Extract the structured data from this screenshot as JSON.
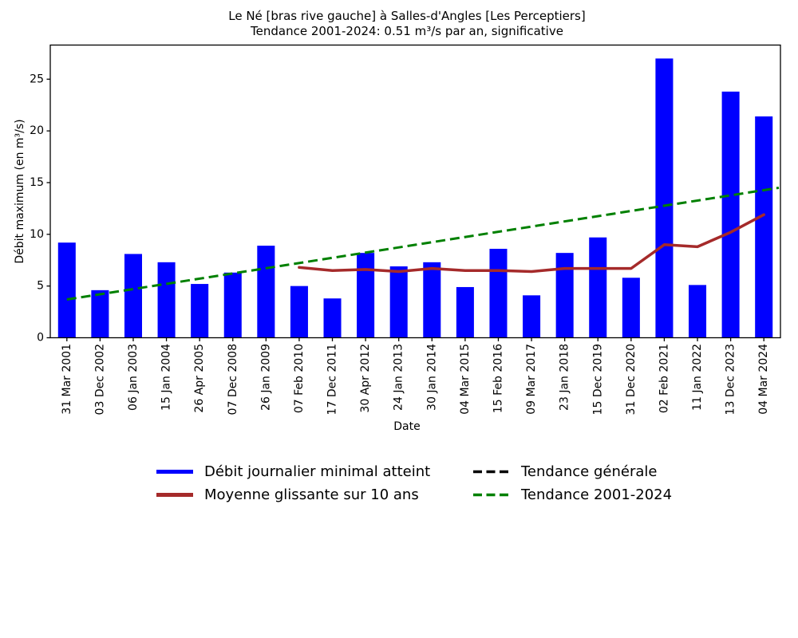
{
  "figure": {
    "title_line1": "Le Né [bras rive gauche] à Salles-d'Angles [Les Perceptiers]",
    "title_line2": "Tendance 2001-2024: 0.51 m³/s par an, significative",
    "xlabel": "Date",
    "ylabel": "Débit maximum (en m³/s)"
  },
  "chart_data": {
    "type": "bar",
    "title": "Le Né [bras rive gauche] à Salles-d'Angles [Les Perceptiers]",
    "subtitle": "Tendance 2001-2024: 0.51 m³/s par an, significative",
    "xlabel": "Date",
    "ylabel": "Débit maximum (en m³/s)",
    "ylim": [
      0,
      28.3
    ],
    "yticks": [
      0,
      5,
      10,
      15,
      20,
      25
    ],
    "grid": false,
    "legend_position": "below-center, 2 columns",
    "categories": [
      "31 Mar 2001",
      "03 Dec 2002",
      "06 Jan 2003",
      "15 Jan 2004",
      "26 Apr 2005",
      "07 Dec 2008",
      "26 Jan 2009",
      "07 Feb 2010",
      "17 Dec 2011",
      "30 Apr 2012",
      "24 Jan 2013",
      "30 Jan 2014",
      "04 Mar 2015",
      "15 Feb 2016",
      "09 Mar 2017",
      "23 Jan 2018",
      "15 Dec 2019",
      "31 Dec 2020",
      "02 Feb 2021",
      "11 Jan 2022",
      "13 Dec 2023",
      "04 Mar 2024"
    ],
    "series": [
      {
        "name": "Débit journalier minimal atteint",
        "type": "bar",
        "color": "#0000ff",
        "values": [
          9.2,
          4.6,
          8.1,
          7.3,
          5.2,
          6.3,
          8.9,
          5.0,
          3.8,
          8.2,
          6.9,
          7.3,
          4.9,
          8.6,
          4.1,
          8.2,
          9.7,
          5.8,
          27.0,
          5.1,
          23.8,
          21.4
        ]
      },
      {
        "name": "Moyenne glissante sur 10 ans",
        "type": "line",
        "color": "#a52a2a",
        "values": [
          null,
          null,
          null,
          null,
          null,
          null,
          null,
          6.8,
          6.5,
          6.6,
          6.4,
          6.7,
          6.5,
          6.5,
          6.4,
          6.7,
          6.7,
          6.7,
          9.0,
          8.8,
          10.2,
          11.9
        ]
      },
      {
        "name": "Tendance générale",
        "type": "dashed-line",
        "color": "#000000",
        "visible_in_plot": false,
        "values": []
      },
      {
        "name": "Tendance 2001-2024",
        "type": "dashed-line",
        "color": "#008000",
        "trend_endpoints": {
          "start_category_index": 0,
          "start_value": 3.7,
          "end_value_at_right_edge": 14.5
        }
      }
    ]
  },
  "legend": {
    "items": [
      {
        "label": "Débit journalier minimal atteint",
        "color": "#0000ff",
        "dash": false
      },
      {
        "label": "Moyenne glissante sur 10 ans",
        "color": "#a52a2a",
        "dash": false
      },
      {
        "label": "Tendance générale",
        "color": "#000000",
        "dash": true
      },
      {
        "label": "Tendance 2001-2024",
        "color": "#008000",
        "dash": true
      }
    ]
  }
}
